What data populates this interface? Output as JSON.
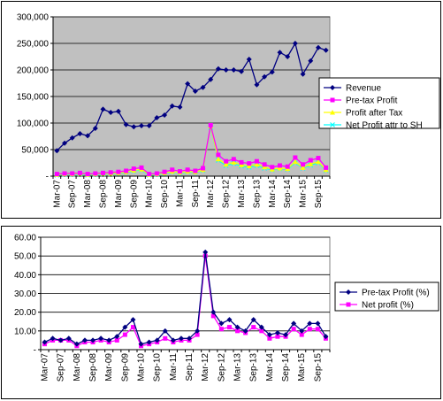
{
  "chart_data": [
    {
      "type": "line",
      "title": "",
      "xlabel": "",
      "ylabel": "",
      "ylim": [
        0,
        300000
      ],
      "y_ticks": [
        "-",
        "50,000",
        "100,000",
        "150,000",
        "200,000",
        "250,000",
        "300,000"
      ],
      "x_tick_labels": [
        "Mar-07",
        "Sep-07",
        "Mar-08",
        "Sep-08",
        "Mar-09",
        "Sep-09",
        "Mar-10",
        "Sep-10",
        "Mar-11",
        "Sep-11",
        "Mar-12",
        "Sep-12",
        "Mar-13",
        "Sep-13",
        "Mar-14",
        "Sep-14",
        "Mar-15",
        "Sep-15"
      ],
      "grid": true,
      "plot_background": "#c0c0c0",
      "legend_position": "right",
      "series": [
        {
          "name": "Revenue",
          "color": "#000080",
          "marker": "diamond",
          "values": [
            48000,
            62000,
            72000,
            80000,
            76000,
            90000,
            126000,
            120000,
            122000,
            97000,
            93000,
            95000,
            95000,
            110000,
            115000,
            132000,
            130000,
            174000,
            160000,
            167000,
            182000,
            202000,
            200000,
            200000,
            197000,
            220000,
            172000,
            187000,
            196000,
            233000,
            225000,
            250000,
            192000,
            217000,
            242000,
            237000
          ]
        },
        {
          "name": "Pre-tax Profit",
          "color": "#ff00ff",
          "marker": "square",
          "values": [
            4000,
            5000,
            5000,
            6000,
            4000,
            5000,
            6000,
            7000,
            8000,
            10000,
            14000,
            16000,
            4000,
            5000,
            8000,
            12000,
            9000,
            12000,
            10000,
            15000,
            96000,
            40000,
            28000,
            32000,
            26000,
            24000,
            28000,
            22000,
            17000,
            20000,
            18000,
            35000,
            22000,
            30000,
            34000,
            16000
          ]
        },
        {
          "name": "Profit after Tax",
          "color": "#ffff00",
          "marker": "triangle",
          "values": [
            3000,
            4000,
            4000,
            5000,
            3000,
            4000,
            5000,
            5000,
            6000,
            8000,
            11000,
            13000,
            3000,
            4000,
            6000,
            9000,
            7000,
            9000,
            8000,
            12000,
            94000,
            32000,
            22000,
            26000,
            21000,
            19000,
            22000,
            17000,
            13000,
            15000,
            14000,
            27000,
            16000,
            23000,
            27000,
            12000
          ]
        },
        {
          "name": "Net Profit attr to SH",
          "color": "#00ffff",
          "marker": "cross",
          "values": [
            2000,
            3000,
            3000,
            4000,
            2000,
            3000,
            4000,
            4000,
            5000,
            7000,
            10000,
            12000,
            2000,
            3000,
            5000,
            8000,
            6000,
            8000,
            7000,
            11000,
            92000,
            30000,
            20000,
            24000,
            19000,
            17000,
            20000,
            15000,
            12000,
            14000,
            13000,
            25000,
            15000,
            21000,
            25000,
            11000
          ]
        }
      ]
    },
    {
      "type": "line",
      "title": "",
      "xlabel": "",
      "ylabel": "",
      "ylim": [
        0,
        60
      ],
      "y_ticks": [
        "-",
        "10.00",
        "20.00",
        "30.00",
        "40.00",
        "50.00",
        "60.00"
      ],
      "x_tick_labels": [
        "Mar-07",
        "Sep-07",
        "Mar-08",
        "Sep-08",
        "Mar-09",
        "Sep-09",
        "Mar-10",
        "Sep-10",
        "Mar-11",
        "Sep-11",
        "Mar-12",
        "Sep-12",
        "Mar-13",
        "Sep-13",
        "Mar-14",
        "Sep-14",
        "Mar-15",
        "Sep-15"
      ],
      "grid": true,
      "plot_background": "#ffffff",
      "legend_position": "right",
      "series": [
        {
          "name": "Pre-tax Profit (%)",
          "color": "#000080",
          "marker": "diamond",
          "values": [
            4,
            6,
            5,
            6,
            3,
            5,
            5,
            6,
            5,
            7,
            12,
            16,
            3,
            4,
            5,
            10,
            5,
            6,
            6,
            10,
            52,
            20,
            14,
            16,
            12,
            10,
            16,
            12,
            8,
            9,
            8,
            14,
            10,
            14,
            14,
            7
          ]
        },
        {
          "name": "Net profit (%)",
          "color": "#ff00ff",
          "marker": "square",
          "values": [
            3,
            5,
            5,
            5,
            2,
            4,
            4,
            5,
            4,
            5,
            8,
            12,
            2,
            3,
            4,
            6,
            4,
            5,
            5,
            8,
            50,
            18,
            11,
            12,
            10,
            9,
            12,
            10,
            6,
            7,
            7,
            11,
            8,
            11,
            11,
            6
          ]
        }
      ]
    }
  ]
}
